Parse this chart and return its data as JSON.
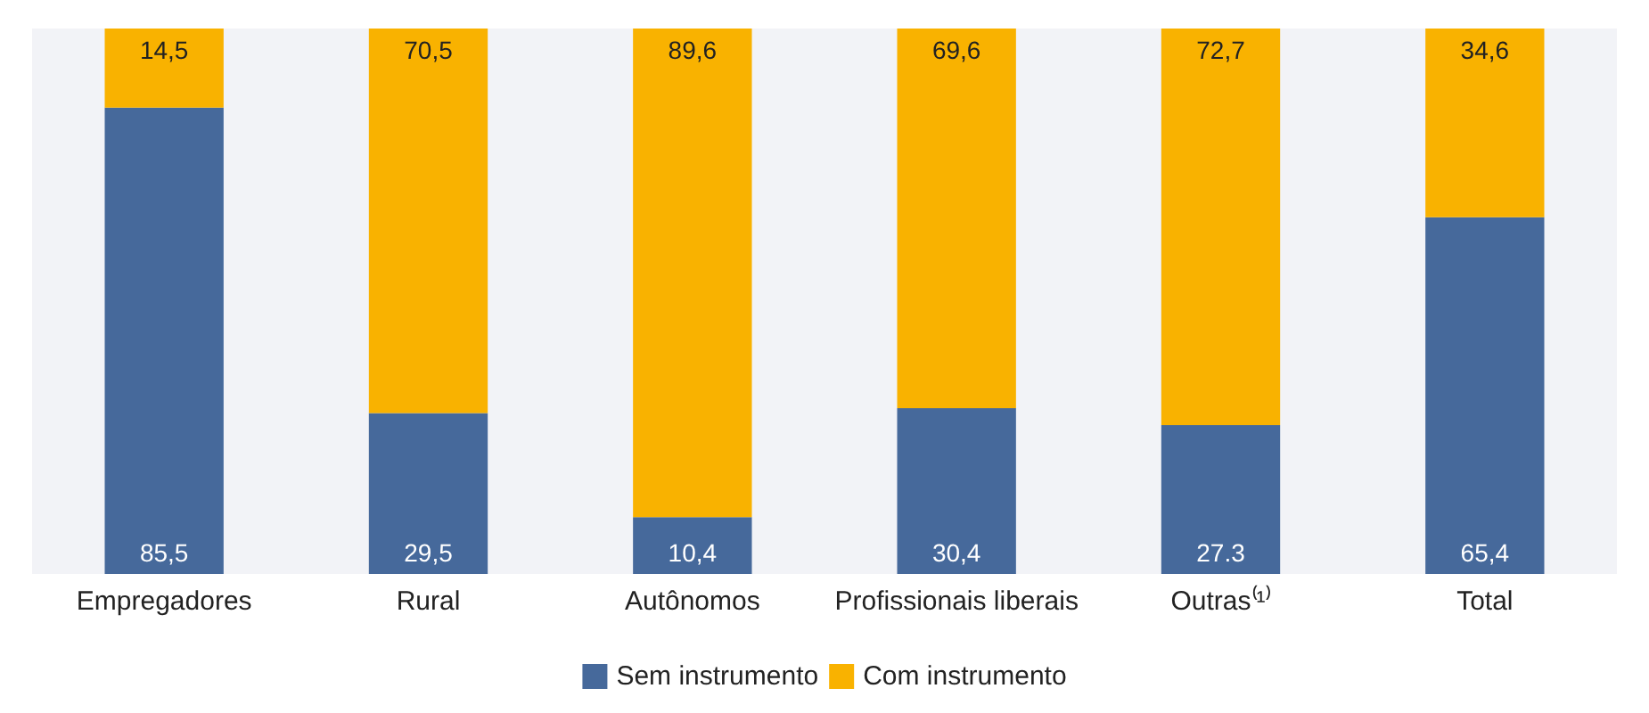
{
  "chart_data": {
    "type": "bar",
    "stacked": true,
    "categories": [
      "Empregadores",
      "Rural",
      "Autônomos",
      "Profissionais liberais",
      "Outras⁽¹⁾",
      "Total"
    ],
    "series": [
      {
        "name": "Sem instrumento",
        "color": "#46699b",
        "values": [
          85.5,
          29.5,
          10.4,
          30.4,
          27.3,
          65.4
        ],
        "value_labels": [
          "85,5",
          "29,5",
          "10,4",
          "30,4",
          "27.3",
          "65,4"
        ]
      },
      {
        "name": "Com instrumento",
        "color": "#f9b200",
        "values": [
          14.5,
          70.5,
          89.6,
          69.6,
          72.7,
          34.6
        ],
        "value_labels": [
          "14,5",
          "70,5",
          "89,6",
          "69,6",
          "72,7",
          "34,6"
        ]
      }
    ],
    "tick_labels": "x",
    "legend": "bottom"
  }
}
